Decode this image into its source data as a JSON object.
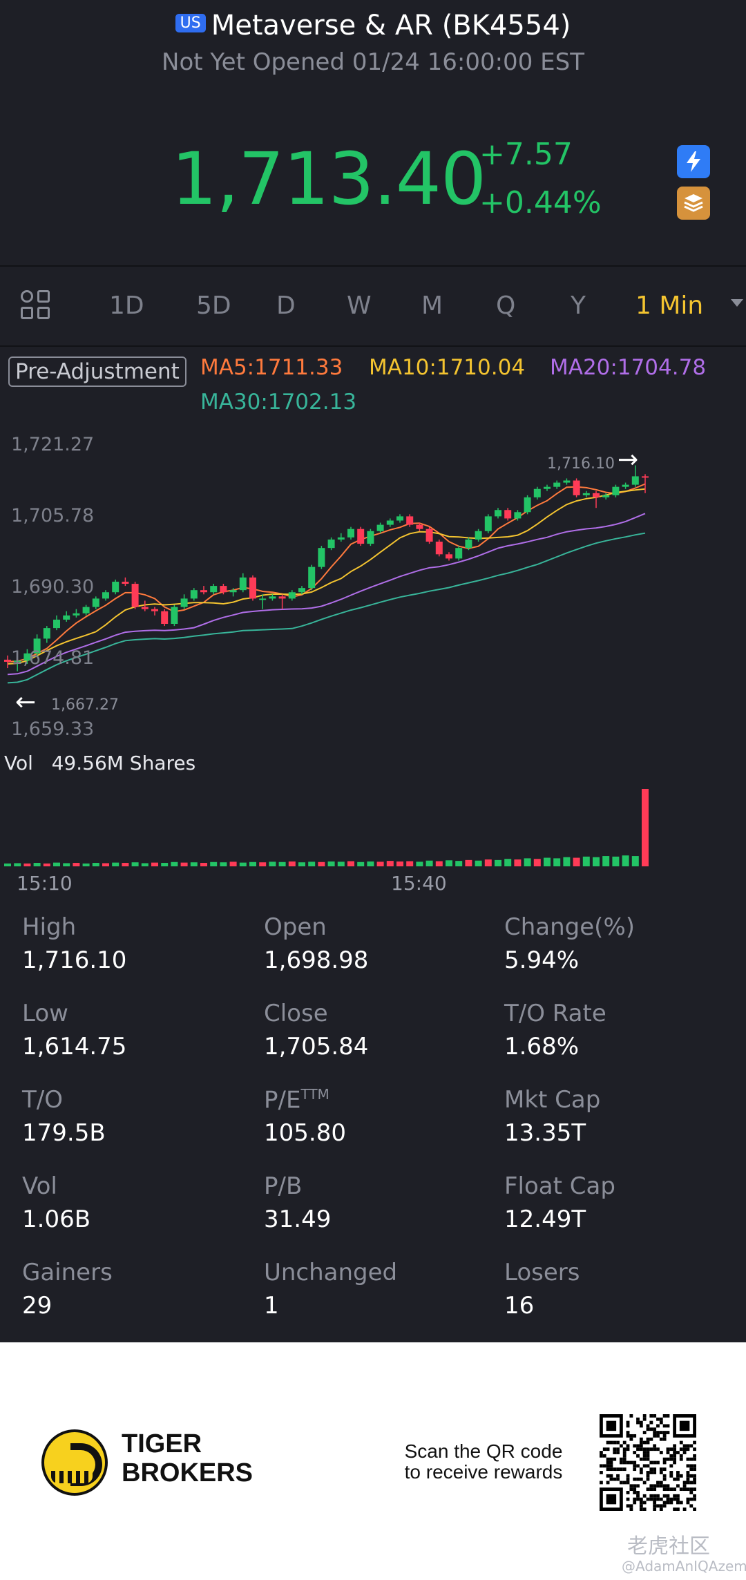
{
  "header": {
    "market_badge": "US",
    "title": "Metaverse & AR (BK4554)",
    "status": "Not Yet Opened 01/24 16:00:00 EST",
    "price": "1,713.40",
    "change": "+7.57",
    "change_pct": "+0.44%",
    "price_color": "#23c466",
    "icons": [
      "lightning-icon",
      "stack-icon"
    ]
  },
  "tabs": {
    "items": [
      "1D",
      "5D",
      "D",
      "W",
      "M",
      "Q",
      "Y",
      "1 Min"
    ],
    "active": "1 Min",
    "active_color": "#f4c430"
  },
  "indicators": {
    "adjustment": "Pre-Adjustment",
    "ma5": "MA5:1711.33",
    "ma10": "MA10:1710.04",
    "ma20": "MA20:1704.78",
    "ma30": "MA30:1702.13",
    "colors": {
      "ma5": "#ff7a3d",
      "ma10": "#f4c430",
      "ma20": "#b06ee8",
      "ma30": "#38b59a"
    }
  },
  "chart_data": {
    "type": "candlestick",
    "y_ticks": [
      "1,721.27",
      "1,705.78",
      "1,690.30",
      "1,674.81",
      "1,659.33"
    ],
    "x_ticks": [
      "15:10",
      "15:40"
    ],
    "high_marker": "1,716.10",
    "low_marker": "1,667.27",
    "ylim": [
      1659.33,
      1721.27
    ],
    "up_color": "#23c466",
    "down_color": "#ff3b57",
    "candles": [
      [
        1670.0,
        1669.5,
        1668.0,
        1671.0
      ],
      [
        1669.5,
        1669.8,
        1667.27,
        1671.0
      ],
      [
        1669.8,
        1671.5,
        1669.0,
        1672.5
      ],
      [
        1671.5,
        1675.0,
        1671.0,
        1676.0
      ],
      [
        1675.0,
        1677.5,
        1674.0,
        1678.0
      ],
      [
        1677.5,
        1679.5,
        1677.0,
        1680.5
      ],
      [
        1679.5,
        1680.5,
        1679.0,
        1681.5
      ],
      [
        1680.5,
        1681.0,
        1680.0,
        1682.0
      ],
      [
        1681.0,
        1682.5,
        1680.5,
        1683.0
      ],
      [
        1682.5,
        1684.5,
        1682.0,
        1685.0
      ],
      [
        1684.5,
        1686.0,
        1684.0,
        1686.5
      ],
      [
        1686.0,
        1688.5,
        1685.5,
        1689.0
      ],
      [
        1688.5,
        1688.0,
        1687.5,
        1689.5
      ],
      [
        1688.0,
        1682.5,
        1682.0,
        1688.5
      ],
      [
        1682.5,
        1682.0,
        1681.5,
        1684.0
      ],
      [
        1682.0,
        1681.5,
        1680.5,
        1682.5
      ],
      [
        1681.5,
        1678.5,
        1678.0,
        1682.0
      ],
      [
        1678.5,
        1682.5,
        1678.0,
        1683.0
      ],
      [
        1682.5,
        1684.5,
        1682.0,
        1685.5
      ],
      [
        1684.5,
        1686.5,
        1684.0,
        1687.0
      ],
      [
        1686.5,
        1686.0,
        1685.5,
        1687.5
      ],
      [
        1686.0,
        1687.5,
        1685.5,
        1688.0
      ],
      [
        1687.5,
        1686.0,
        1685.5,
        1688.0
      ],
      [
        1686.0,
        1686.5,
        1685.0,
        1687.0
      ],
      [
        1686.5,
        1689.5,
        1686.0,
        1690.5
      ],
      [
        1689.5,
        1684.5,
        1684.0,
        1690.0
      ],
      [
        1684.5,
        1684.5,
        1682.0,
        1685.5
      ],
      [
        1684.5,
        1685.0,
        1684.0,
        1685.5
      ],
      [
        1685.0,
        1684.5,
        1682.0,
        1685.5
      ],
      [
        1684.5,
        1686.0,
        1684.0,
        1686.5
      ],
      [
        1686.0,
        1687.0,
        1685.5,
        1687.5
      ],
      [
        1687.0,
        1692.0,
        1686.5,
        1692.5
      ],
      [
        1692.0,
        1696.5,
        1691.5,
        1697.0
      ],
      [
        1696.5,
        1698.5,
        1696.0,
        1699.0
      ],
      [
        1698.5,
        1699.0,
        1698.0,
        1700.0
      ],
      [
        1699.0,
        1701.0,
        1698.5,
        1701.5
      ],
      [
        1701.0,
        1697.5,
        1697.0,
        1701.5
      ],
      [
        1697.5,
        1700.5,
        1697.0,
        1701.0
      ],
      [
        1700.5,
        1702.0,
        1700.0,
        1702.5
      ],
      [
        1702.0,
        1703.0,
        1701.5,
        1703.5
      ],
      [
        1703.0,
        1704.0,
        1702.5,
        1704.5
      ],
      [
        1704.0,
        1702.0,
        1701.5,
        1704.5
      ],
      [
        1702.0,
        1701.0,
        1700.5,
        1702.5
      ],
      [
        1701.0,
        1698.0,
        1697.5,
        1701.5
      ],
      [
        1698.0,
        1695.0,
        1694.5,
        1698.5
      ],
      [
        1695.0,
        1694.0,
        1693.5,
        1695.5
      ],
      [
        1694.0,
        1696.5,
        1693.5,
        1697.0
      ],
      [
        1696.5,
        1698.5,
        1696.0,
        1699.0
      ],
      [
        1698.5,
        1700.5,
        1698.0,
        1701.0
      ],
      [
        1700.5,
        1704.0,
        1700.0,
        1704.5
      ],
      [
        1704.0,
        1705.5,
        1703.5,
        1706.0
      ],
      [
        1705.5,
        1703.5,
        1703.0,
        1706.0
      ],
      [
        1703.5,
        1705.0,
        1703.0,
        1705.5
      ],
      [
        1705.0,
        1708.5,
        1704.5,
        1709.0
      ],
      [
        1708.5,
        1710.5,
        1708.0,
        1711.0
      ],
      [
        1710.5,
        1711.0,
        1710.0,
        1711.5
      ],
      [
        1711.0,
        1712.0,
        1710.5,
        1712.5
      ],
      [
        1712.0,
        1712.5,
        1711.5,
        1713.0
      ],
      [
        1712.5,
        1709.0,
        1708.5,
        1713.0
      ],
      [
        1709.0,
        1709.5,
        1708.5,
        1710.0
      ],
      [
        1709.5,
        1708.5,
        1706.0,
        1710.0
      ],
      [
        1708.5,
        1709.0,
        1708.0,
        1709.5
      ],
      [
        1709.0,
        1711.0,
        1708.5,
        1711.5
      ],
      [
        1711.0,
        1711.5,
        1710.5,
        1712.0
      ],
      [
        1711.5,
        1713.5,
        1711.0,
        1716.1
      ],
      [
        1713.5,
        1713.4,
        1709.5,
        1714.0
      ]
    ],
    "volume_label": "Vol",
    "volume_total": "49.56M Shares",
    "volume_values": [
      1.0,
      1.1,
      1.0,
      1.2,
      1.0,
      1.3,
      1.1,
      1.2,
      1.0,
      1.2,
      1.1,
      1.3,
      1.2,
      1.4,
      1.1,
      1.3,
      1.2,
      1.5,
      1.3,
      1.4,
      1.2,
      1.5,
      1.4,
      1.6,
      1.3,
      1.5,
      1.4,
      1.6,
      1.5,
      1.7,
      1.4,
      1.6,
      1.5,
      1.7,
      1.6,
      1.8,
      1.5,
      1.7,
      1.6,
      1.9,
      1.7,
      1.8,
      1.6,
      2.0,
      1.8,
      2.1,
      1.9,
      2.2,
      2.0,
      2.4,
      2.2,
      2.6,
      2.4,
      2.8,
      2.6,
      3.0,
      2.8,
      3.2,
      3.0,
      3.4,
      3.2,
      3.6,
      3.4,
      3.8,
      3.6,
      27.0
    ],
    "volume_down": [
      false,
      false,
      true,
      false,
      true,
      false,
      false,
      true,
      false,
      false,
      true,
      false,
      true,
      false,
      false,
      true,
      false,
      false,
      true,
      false,
      true,
      false,
      false,
      true,
      false,
      false,
      true,
      false,
      false,
      true,
      false,
      false,
      true,
      false,
      false,
      true,
      false,
      false,
      true,
      true,
      true,
      true,
      false,
      false,
      true,
      false,
      false,
      true,
      false,
      true,
      false,
      false,
      true,
      false,
      true,
      false,
      false,
      false,
      true,
      false,
      false,
      false,
      false,
      false,
      false,
      true
    ]
  },
  "stats": [
    {
      "label": "High",
      "value": "1,716.10"
    },
    {
      "label": "Open",
      "value": "1,698.98"
    },
    {
      "label": "Change(%)",
      "value": "5.94%"
    },
    {
      "label": "Low",
      "value": "1,614.75"
    },
    {
      "label": "Close",
      "value": "1,705.84"
    },
    {
      "label": "T/O Rate",
      "value": "1.68%"
    },
    {
      "label": "T/O",
      "value": "179.5B"
    },
    {
      "label": "P/E",
      "sup": "TTM",
      "value": "105.80"
    },
    {
      "label": "Mkt Cap",
      "value": "13.35T"
    },
    {
      "label": "Vol",
      "value": "1.06B"
    },
    {
      "label": "P/B",
      "value": "31.49"
    },
    {
      "label": "Float Cap",
      "value": "12.49T"
    },
    {
      "label": "Gainers",
      "value": "29"
    },
    {
      "label": "Unchanged",
      "value": "1"
    },
    {
      "label": "Losers",
      "value": "16"
    }
  ],
  "footer": {
    "brand_line1": "TIGER",
    "brand_line2": "BROKERS",
    "scan_line1": "Scan the QR code",
    "scan_line2": "to receive rewards",
    "watermark": "老虎社区",
    "watermark_user": "@AdamAnIQAzem"
  }
}
